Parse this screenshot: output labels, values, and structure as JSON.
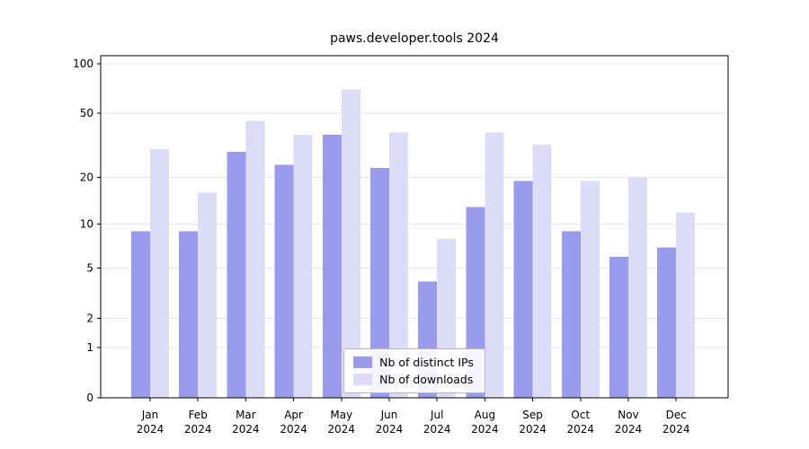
{
  "title": "paws.developer.tools 2024",
  "legend": {
    "items": [
      {
        "label": "Nb of distinct IPs",
        "color": "#9b9bee"
      },
      {
        "label": "Nb of downloads",
        "color": "#dcdcf8"
      }
    ]
  },
  "axes": {
    "ytick_labels": [
      "100",
      "50",
      "20",
      "10",
      "5",
      "2",
      "1",
      "0"
    ],
    "grid_color": "#e6e6e6",
    "spine_color": "#000000",
    "text_color": "#000000"
  },
  "chart_data": {
    "type": "bar",
    "title": "paws.developer.tools 2024",
    "categories": [
      "Jan 2024",
      "Feb 2024",
      "Mar 2024",
      "Apr 2024",
      "May 2024",
      "Jun 2024",
      "Jul 2024",
      "Aug 2024",
      "Sep 2024",
      "Oct 2024",
      "Nov 2024",
      "Dec 2024"
    ],
    "series": [
      {
        "name": "Nb of distinct IPs",
        "color": "#9b9bee",
        "values": [
          9,
          9,
          29,
          24,
          37,
          23,
          4,
          13,
          19,
          9,
          6,
          7
        ]
      },
      {
        "name": "Nb of downloads",
        "color": "#dcdcf8",
        "values": [
          30,
          16,
          45,
          37,
          70,
          38,
          8,
          38,
          32,
          19,
          20,
          12
        ]
      }
    ],
    "xlabel": "",
    "ylabel": "",
    "yscale": "log1p",
    "yticks": [
      0,
      1,
      2,
      5,
      10,
      20,
      50,
      100
    ],
    "ylim": [
      0,
      112
    ],
    "grid": true,
    "legend_position": "lower center"
  }
}
